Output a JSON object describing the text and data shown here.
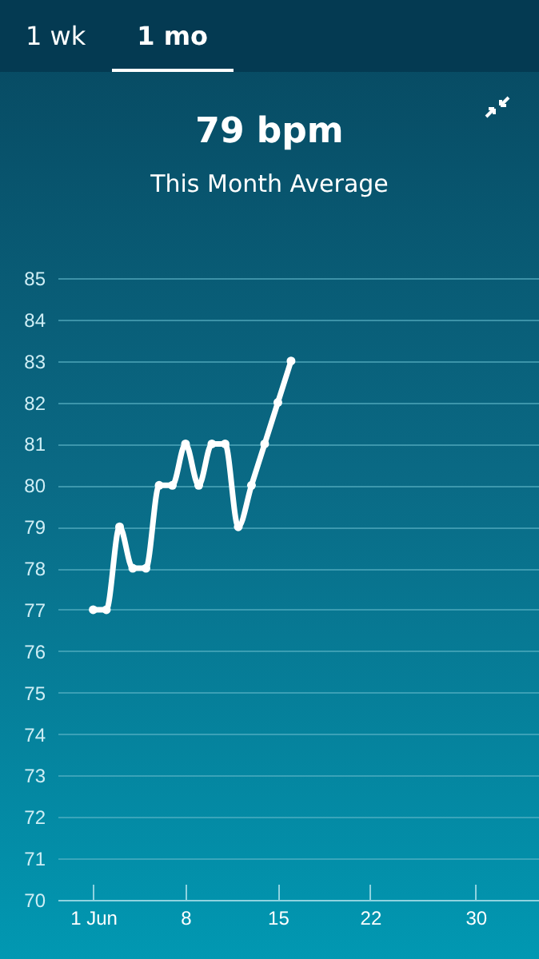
{
  "chart_data": {
    "type": "line",
    "title": "79 bpm",
    "subtitle": "This Month Average",
    "annotations": [
      "1 wk",
      "1 mo"
    ],
    "x": [
      1,
      2,
      3,
      4,
      5,
      6,
      7,
      8,
      9,
      10,
      11,
      12,
      13,
      14,
      15,
      16
    ],
    "series": [
      {
        "color": "#ffffff",
        "values": [
          77,
          77,
          79,
          78,
          78,
          80,
          80,
          81,
          80,
          81,
          81,
          79,
          80,
          81,
          82,
          83
        ]
      }
    ],
    "xlim": [
      -1.7,
      34.8
    ],
    "xticks": [
      {
        "value": 1,
        "label": "1 Jun"
      },
      8,
      15,
      22,
      30
    ],
    "ylim": [
      70,
      85
    ],
    "yticks": [
      70,
      71,
      72,
      73,
      74,
      75,
      76,
      77,
      78,
      79,
      80,
      81,
      82,
      83,
      84,
      85
    ],
    "grid": "y",
    "marker": "circle",
    "line_style": "solid",
    "legend": false
  }
}
